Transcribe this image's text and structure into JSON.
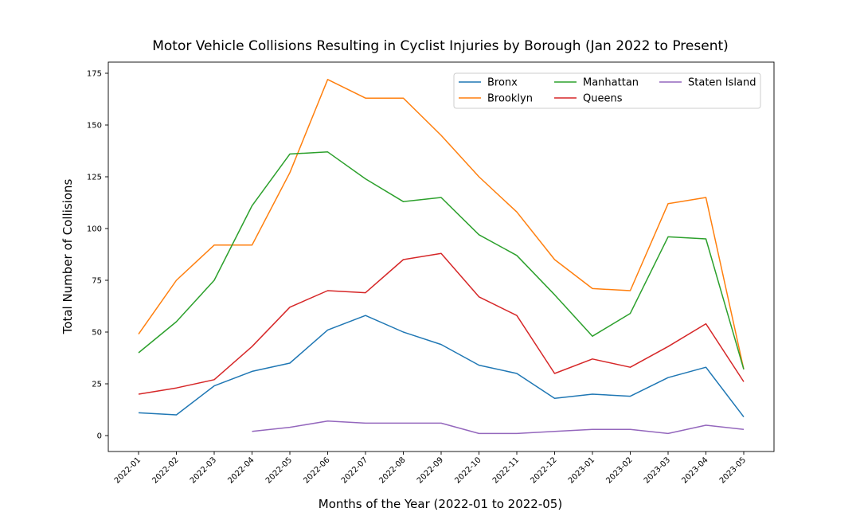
{
  "chart_data": {
    "type": "line",
    "title": "Motor Vehicle Collisions Resulting in Cyclist Injuries by Borough (Jan 2022 to Present)",
    "xlabel": "Months of the Year (2022-01 to 2022-05)",
    "ylabel": "Total Number of Collisions",
    "categories": [
      "2022-01",
      "2022-02",
      "2022-03",
      "2022-04",
      "2022-05",
      "2022-06",
      "2022-07",
      "2022-08",
      "2022-09",
      "2022-10",
      "2022-11",
      "2022-12",
      "2023-01",
      "2023-02",
      "2023-03",
      "2023-04",
      "2023-05"
    ],
    "ylim": [
      -8,
      180
    ],
    "yticks": [
      0,
      25,
      50,
      75,
      100,
      125,
      150,
      175
    ],
    "grid": false,
    "legend": {
      "placement": "top-right",
      "columns": 3
    },
    "series": [
      {
        "name": "Bronx",
        "color": "#1f77b4",
        "values": [
          11,
          10,
          24,
          31,
          35,
          51,
          58,
          50,
          44,
          34,
          30,
          18,
          20,
          19,
          28,
          33,
          9
        ]
      },
      {
        "name": "Brooklyn",
        "color": "#ff7f0e",
        "values": [
          49,
          75,
          92,
          92,
          127,
          172,
          163,
          163,
          145,
          125,
          108,
          85,
          71,
          70,
          112,
          115,
          32
        ]
      },
      {
        "name": "Manhattan",
        "color": "#2ca02c",
        "values": [
          40,
          55,
          75,
          111,
          136,
          137,
          124,
          113,
          115,
          97,
          87,
          68,
          48,
          59,
          96,
          95,
          32
        ]
      },
      {
        "name": "Queens",
        "color": "#d62728",
        "values": [
          20,
          23,
          27,
          43,
          62,
          70,
          69,
          85,
          88,
          67,
          58,
          30,
          37,
          33,
          43,
          54,
          26
        ]
      },
      {
        "name": "Staten Island",
        "color": "#9467bd",
        "values": [
          null,
          null,
          null,
          2,
          4,
          7,
          6,
          6,
          6,
          1,
          1,
          2,
          3,
          3,
          1,
          5,
          3
        ]
      }
    ]
  }
}
